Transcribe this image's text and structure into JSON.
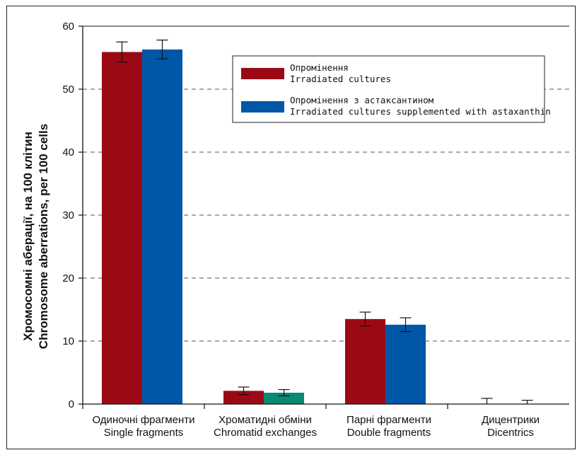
{
  "chart_data": {
    "type": "bar",
    "ylabel_line1": "Хромосомні аберації, на 100 клітин",
    "ylabel_line2": "Chromosome aberrations, per 100 cells",
    "ylim": [
      0,
      60
    ],
    "yticks": [
      0,
      10,
      20,
      30,
      40,
      50,
      60
    ],
    "grid": "dashed horizontal",
    "legend_position": "top-right",
    "categories": [
      {
        "uk": "Одиночні фрагменти",
        "en": "Single fragments"
      },
      {
        "uk": "Хроматидні обміни",
        "en": "Chromatid exchanges"
      },
      {
        "uk": "Парні фрагменти",
        "en": "Double fragments"
      },
      {
        "uk": "Дицентрики",
        "en": "Dicentrics"
      }
    ],
    "series": [
      {
        "name_uk": "Опромінення",
        "name_en": "Irradiated cultures",
        "color": "#9b0a14",
        "values": [
          55.9,
          2.1,
          13.5,
          0.0
        ],
        "errors": [
          1.6,
          0.6,
          1.1,
          0.9
        ]
      },
      {
        "name_uk": "Опромінення з астаксантином",
        "name_en": "Irradiated cultures supplemented with astaxanthin",
        "color": "#0057a8",
        "values": [
          56.3,
          1.8,
          12.6,
          0.0
        ],
        "errors": [
          1.5,
          0.5,
          1.1,
          0.6
        ]
      }
    ],
    "highlight_color": "#0a8a73"
  }
}
